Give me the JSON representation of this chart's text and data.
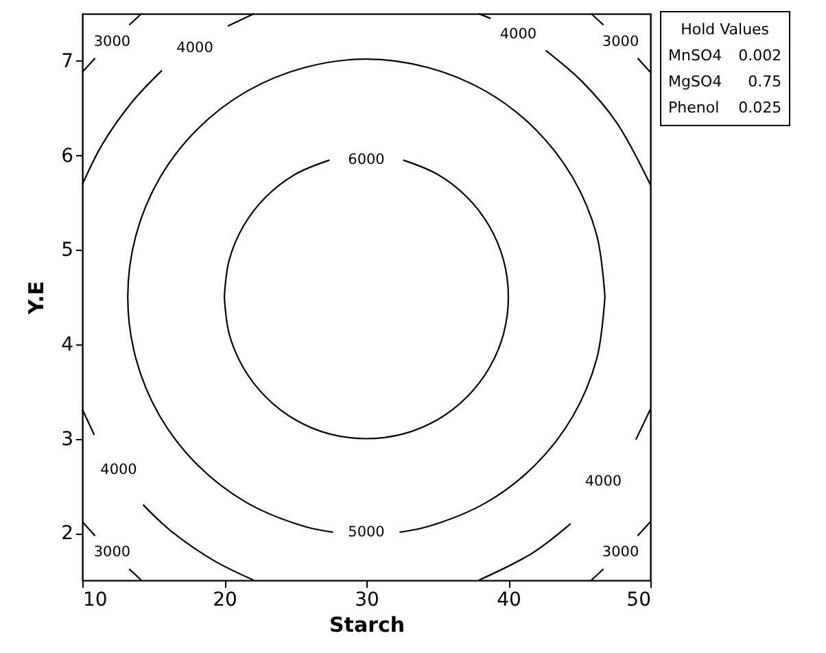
{
  "chart_data": {
    "type": "line",
    "xlabel": "Starch",
    "ylabel": "Y.E",
    "xlim": [
      10,
      50
    ],
    "ylim": [
      1.5,
      7.5
    ],
    "xticks": [
      10,
      20,
      30,
      40,
      50
    ],
    "yticks": [
      2,
      3,
      4,
      5,
      6,
      7
    ],
    "grid": false,
    "line_style": "solid",
    "series": [
      {
        "name": "3000",
        "color": "#000000",
        "x": [
          10.0,
          10.9,
          null,
          13.3,
          14.16
        ],
        "values": [
          6.88,
          7.03,
          null,
          7.38,
          7.5
        ]
      },
      {
        "name": "3000",
        "color": "#000000",
        "x": [
          50.0,
          49.1,
          null,
          46.7,
          45.84
        ],
        "values": [
          6.88,
          7.03,
          null,
          7.38,
          7.5
        ]
      },
      {
        "name": "3000",
        "color": "#000000",
        "x": [
          10.0,
          10.9,
          null,
          13.3,
          14.16
        ],
        "values": [
          2.12,
          1.97,
          null,
          1.62,
          1.5
        ]
      },
      {
        "name": "3000",
        "color": "#000000",
        "x": [
          50.0,
          49.1,
          null,
          46.7,
          45.84
        ],
        "values": [
          2.12,
          1.97,
          null,
          1.62,
          1.5
        ]
      },
      {
        "name": "4000",
        "color": "#000000",
        "x": [
          22.09,
          20.24,
          null,
          15.61,
          13.53,
          11.38,
          10.0
        ],
        "values": [
          7.5,
          7.37,
          null,
          6.9,
          6.57,
          6.11,
          5.69
        ]
      },
      {
        "name": "4000",
        "color": "#000000",
        "x": [
          10.0,
          10.84,
          null,
          14.28,
          16.18,
          19.25,
          22.09
        ],
        "values": [
          3.31,
          3.04,
          null,
          2.3,
          2.03,
          1.71,
          1.5
        ]
      },
      {
        "name": "4000",
        "color": "#000000",
        "x": [
          37.91,
          38.75,
          null,
          42.64,
          45.2,
          47.61,
          50.0
        ],
        "values": [
          7.5,
          7.45,
          null,
          7.11,
          6.78,
          6.35,
          5.69
        ]
      },
      {
        "name": "4000",
        "color": "#000000",
        "x": [
          50.0,
          48.98,
          null,
          44.39,
          41.71,
          37.91
        ],
        "values": [
          3.31,
          2.99,
          null,
          2.1,
          1.79,
          1.5
        ]
      },
      {
        "name": "5000",
        "color": "#000000",
        "x": [
          46.8,
          46.23,
          44.55,
          41.88,
          38.4,
          34.35,
          30,
          25.65,
          21.6,
          18.12,
          15.45,
          13.77,
          13.2,
          13.77,
          15.45,
          18.12,
          21.6,
          25.65,
          27.66,
          null,
          32.34,
          34.35,
          38.4,
          41.88,
          44.55,
          46.23,
          46.8
        ],
        "values": [
          4.5,
          5.15,
          5.76,
          6.28,
          6.68,
          6.93,
          7.02,
          6.93,
          6.68,
          6.28,
          5.76,
          5.15,
          4.5,
          3.85,
          3.24,
          2.72,
          2.32,
          2.07,
          2.01,
          null,
          2.01,
          2.07,
          2.32,
          2.72,
          3.24,
          3.85,
          4.5
        ]
      },
      {
        "name": "6000",
        "color": "#000000",
        "x": [
          20,
          20.34,
          21.34,
          22.93,
          25.0,
          27.41,
          30,
          32.59,
          35.0,
          37.07,
          38.66,
          39.66,
          40,
          39.66,
          38.66,
          37.07,
          35.0,
          32.59,
          null,
          27.41,
          25.0,
          22.93,
          21.34,
          20.34,
          20
        ],
        "values": [
          4.5,
          4.11,
          3.75,
          3.44,
          3.2,
          3.05,
          3.0,
          3.05,
          3.2,
          3.44,
          3.75,
          4.11,
          4.5,
          4.89,
          5.25,
          5.56,
          5.8,
          5.95,
          null,
          5.95,
          5.8,
          5.56,
          5.25,
          4.89,
          4.5
        ]
      }
    ],
    "annotations": [
      "Hold Values",
      "MnSO4 0.002",
      "MgSO4 0.75",
      "Phenol 0.025"
    ]
  }
}
